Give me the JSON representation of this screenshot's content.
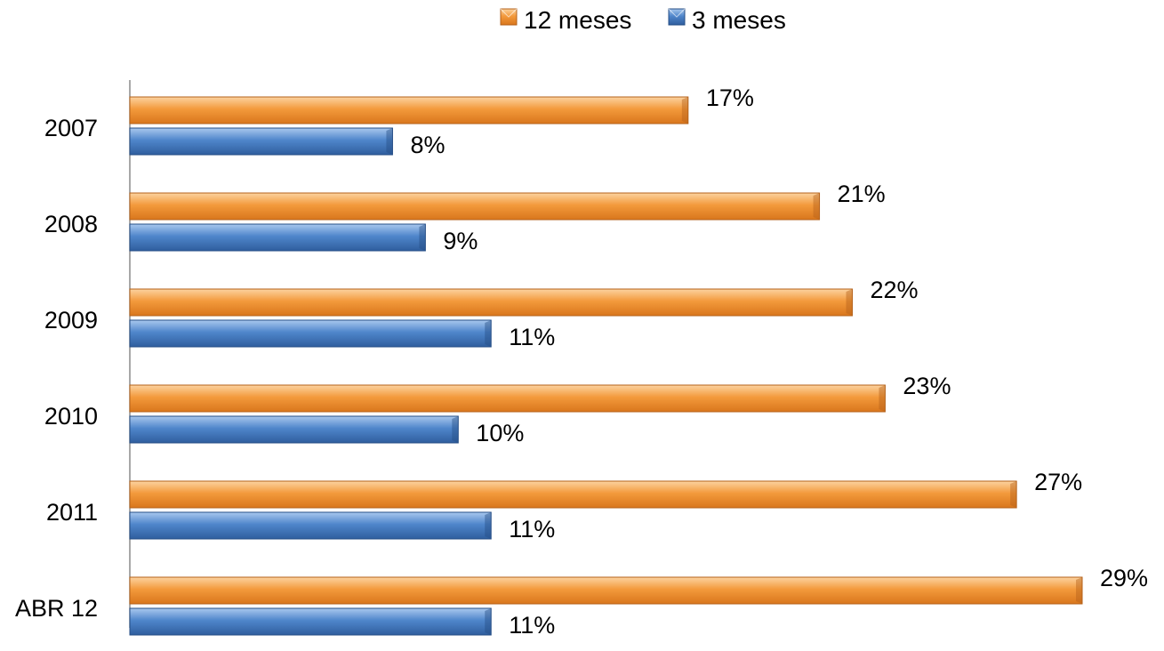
{
  "chart_data": {
    "type": "bar",
    "orientation": "horizontal",
    "categories": [
      "2007",
      "2008",
      "2009",
      "2010",
      "2011",
      "ABR 12"
    ],
    "series": [
      {
        "name": "12 meses",
        "values": [
          17,
          21,
          22,
          23,
          27,
          29
        ],
        "labels": [
          "17%",
          "21%",
          "22%",
          "23%",
          "27%",
          "29%"
        ],
        "color": "#F0922E"
      },
      {
        "name": "3 meses",
        "values": [
          8,
          9,
          11,
          10,
          11,
          11
        ],
        "labels": [
          "8%",
          "9%",
          "11%",
          "10%",
          "11%",
          "11%"
        ],
        "color": "#4A82C8"
      }
    ],
    "value_unit": "%",
    "xlim": [
      0,
      29
    ],
    "legend_position": "top-center",
    "grid": false,
    "title": "",
    "xlabel": "",
    "ylabel": ""
  }
}
